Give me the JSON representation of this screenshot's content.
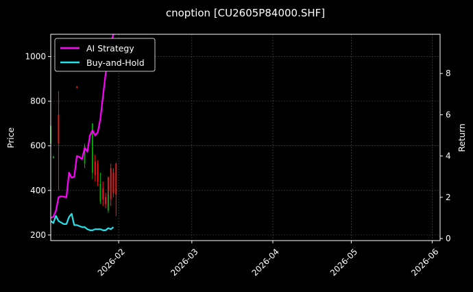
{
  "chart_data": {
    "type": "line",
    "title": "cnoption [CU2605P84000.SHF]",
    "ylabel": "Price",
    "y2label": "Return",
    "grid": true,
    "legend_position": "top-left",
    "x_axis": {
      "type": "date",
      "range": [
        "2026-01-06",
        "2026-06-04"
      ],
      "tick_dates": [
        "2026-02-01",
        "2026-03-01",
        "2026-04-01",
        "2026-05-01",
        "2026-06-01"
      ],
      "tick_labels": [
        "2026-02",
        "2026-03",
        "2026-04",
        "2026-05",
        "2026-06"
      ]
    },
    "y_axis": {
      "range": [
        175,
        1100
      ],
      "ticks": [
        200,
        400,
        600,
        800,
        1000
      ],
      "tick_labels": [
        "200",
        "400",
        "600",
        "800",
        "1000"
      ]
    },
    "y2_axis": {
      "range": [
        -0.1,
        9.9
      ],
      "ticks": [
        0,
        2,
        4,
        6,
        8
      ],
      "tick_labels": [
        "0",
        "2",
        "4",
        "6",
        "8"
      ]
    },
    "candles": {
      "up_color": "#00b300",
      "down_color": "#ff1a1a",
      "bars": [
        {
          "date": "2026-01-06",
          "open": 610,
          "close": 690,
          "high": 700,
          "low": 600,
          "dir": "up"
        },
        {
          "date": "2026-01-07",
          "open": 545,
          "close": 552,
          "high": 555,
          "low": 543,
          "dir": "up"
        },
        {
          "date": "2026-01-09",
          "open": 740,
          "close": 610,
          "high": 845,
          "low": 400,
          "dir": "down"
        },
        {
          "date": "2026-01-16",
          "open": 865,
          "close": 860,
          "high": 868,
          "low": 858,
          "dir": "down"
        },
        {
          "date": "2026-01-19",
          "open": 520,
          "close": 600,
          "high": 610,
          "low": 500,
          "dir": "up"
        },
        {
          "date": "2026-01-22",
          "open": 480,
          "close": 700,
          "high": 700,
          "low": 450,
          "dir": "up"
        },
        {
          "date": "2026-01-23",
          "open": 530,
          "close": 470,
          "high": 560,
          "low": 440,
          "dir": "down"
        },
        {
          "date": "2026-01-24",
          "open": 520,
          "close": 440,
          "high": 535,
          "low": 420,
          "dir": "down"
        },
        {
          "date": "2026-01-25",
          "open": 350,
          "close": 430,
          "high": 480,
          "low": 340,
          "dir": "up"
        },
        {
          "date": "2026-01-26",
          "open": 410,
          "close": 360,
          "high": 440,
          "low": 330,
          "dir": "down"
        },
        {
          "date": "2026-01-27",
          "open": 370,
          "close": 340,
          "high": 390,
          "low": 320,
          "dir": "down"
        },
        {
          "date": "2026-01-28",
          "open": 460,
          "close": 330,
          "high": 460,
          "low": 320,
          "dir": "down"
        },
        {
          "date": "2026-01-28",
          "open": 310,
          "close": 380,
          "high": 400,
          "low": 300,
          "dir": "up"
        },
        {
          "date": "2026-01-29",
          "open": 500,
          "close": 360,
          "high": 520,
          "low": 330,
          "dir": "down"
        },
        {
          "date": "2026-01-30",
          "open": 480,
          "close": 390,
          "high": 500,
          "low": 370,
          "dir": "down"
        },
        {
          "date": "2026-01-31",
          "open": 520,
          "close": 380,
          "high": 525,
          "low": 285,
          "dir": "down"
        }
      ]
    },
    "series": [
      {
        "name": "AI Strategy",
        "color": "#ff00ff",
        "axis": "y2",
        "x": [
          "2026-01-06",
          "2026-01-07",
          "2026-01-08",
          "2026-01-09",
          "2026-01-10",
          "2026-01-12",
          "2026-01-13",
          "2026-01-14",
          "2026-01-15",
          "2026-01-16",
          "2026-01-17",
          "2026-01-18",
          "2026-01-19",
          "2026-01-20",
          "2026-01-21",
          "2026-01-22",
          "2026-01-23",
          "2026-01-24",
          "2026-01-25",
          "2026-01-26",
          "2026-01-27",
          "2026-01-28",
          "2026-01-29",
          "2026-01-30"
        ],
        "values": [
          1.0,
          1.05,
          1.35,
          2.0,
          2.05,
          2.0,
          3.2,
          2.95,
          3.0,
          4.0,
          3.95,
          3.85,
          4.4,
          4.2,
          5.0,
          5.25,
          5.0,
          5.15,
          5.8,
          6.9,
          8.0,
          8.6,
          9.5,
          9.9
        ]
      },
      {
        "name": "Buy-and-Hold",
        "color": "#22e5ee",
        "axis": "y2",
        "x": [
          "2026-01-06",
          "2026-01-07",
          "2026-01-08",
          "2026-01-09",
          "2026-01-11",
          "2026-01-12",
          "2026-01-13",
          "2026-01-14",
          "2026-01-15",
          "2026-01-16",
          "2026-01-17",
          "2026-01-18",
          "2026-01-19",
          "2026-01-20",
          "2026-01-21",
          "2026-01-22",
          "2026-01-23",
          "2026-01-24",
          "2026-01-25",
          "2026-01-26",
          "2026-01-27",
          "2026-01-28",
          "2026-01-29",
          "2026-01-30"
        ],
        "values": [
          0.85,
          0.75,
          1.1,
          0.85,
          0.7,
          0.7,
          1.05,
          1.2,
          0.65,
          0.65,
          0.6,
          0.55,
          0.55,
          0.45,
          0.4,
          0.4,
          0.45,
          0.45,
          0.45,
          0.4,
          0.4,
          0.5,
          0.45,
          0.55
        ]
      }
    ]
  }
}
